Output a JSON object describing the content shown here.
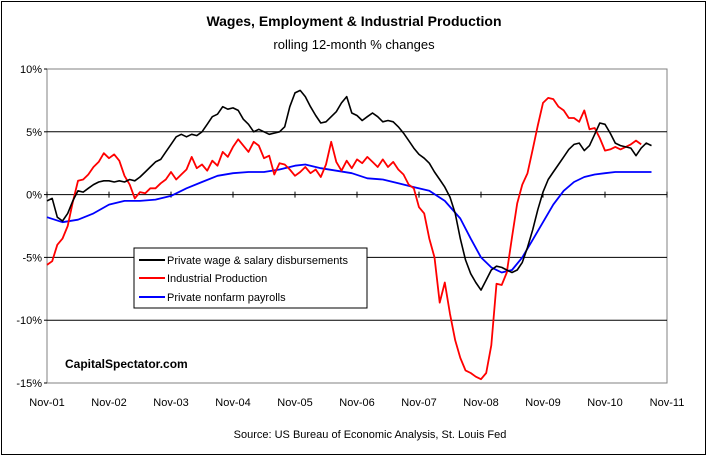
{
  "chart_data": {
    "type": "line",
    "title": "Wages, Employment & Industrial Production",
    "subtitle": "rolling 12-month % changes",
    "ylim": [
      -15,
      10
    ],
    "y_ticks": [
      "10%",
      "5%",
      "0%",
      "-5%",
      "-10%",
      "-15%"
    ],
    "y_tick_values": [
      10,
      5,
      0,
      -5,
      -10,
      -15
    ],
    "x_ticks": [
      "Nov-01",
      "Nov-02",
      "Nov-03",
      "Nov-04",
      "Nov-05",
      "Nov-06",
      "Nov-07",
      "Nov-08",
      "Nov-09",
      "Nov-10",
      "Nov-11"
    ],
    "grid": "horizontal",
    "legend_position": "left-middle",
    "series": [
      {
        "name": "Private wage & salary disbursements",
        "color": "#000000",
        "points": [
          [
            0,
            -0.5
          ],
          [
            1,
            -0.3
          ],
          [
            2,
            -1.8
          ],
          [
            3,
            -2.1
          ],
          [
            4,
            -1.5
          ],
          [
            5,
            -0.5
          ],
          [
            6,
            0.3
          ],
          [
            7,
            0.2
          ],
          [
            8,
            0.5
          ],
          [
            9,
            0.8
          ],
          [
            10,
            1.0
          ],
          [
            11,
            1.1
          ],
          [
            12,
            1.1
          ],
          [
            13,
            1.0
          ],
          [
            14,
            1.1
          ],
          [
            15,
            1.0
          ],
          [
            16,
            1.2
          ],
          [
            17,
            1.1
          ],
          [
            18,
            1.4
          ],
          [
            19,
            1.8
          ],
          [
            20,
            2.2
          ],
          [
            21,
            2.6
          ],
          [
            22,
            2.8
          ],
          [
            23,
            3.4
          ],
          [
            24,
            4.0
          ],
          [
            25,
            4.6
          ],
          [
            26,
            4.8
          ],
          [
            27,
            4.6
          ],
          [
            28,
            4.8
          ],
          [
            29,
            4.7
          ],
          [
            30,
            5.0
          ],
          [
            31,
            5.6
          ],
          [
            32,
            6.2
          ],
          [
            33,
            6.4
          ],
          [
            34,
            7.0
          ],
          [
            35,
            6.8
          ],
          [
            36,
            6.9
          ],
          [
            37,
            6.7
          ],
          [
            38,
            6.0
          ],
          [
            39,
            5.6
          ],
          [
            40,
            5.0
          ],
          [
            41,
            5.2
          ],
          [
            42,
            5.0
          ],
          [
            43,
            4.8
          ],
          [
            44,
            4.9
          ],
          [
            45,
            5.0
          ],
          [
            46,
            5.4
          ],
          [
            47,
            7.0
          ],
          [
            48,
            8.1
          ],
          [
            49,
            8.3
          ],
          [
            50,
            7.8
          ],
          [
            51,
            7.0
          ],
          [
            52,
            6.3
          ],
          [
            53,
            5.7
          ],
          [
            54,
            5.8
          ],
          [
            55,
            6.2
          ],
          [
            56,
            6.6
          ],
          [
            57,
            7.3
          ],
          [
            58,
            7.8
          ],
          [
            59,
            6.5
          ],
          [
            60,
            6.3
          ],
          [
            61,
            5.9
          ],
          [
            62,
            6.2
          ],
          [
            63,
            6.5
          ],
          [
            64,
            6.2
          ],
          [
            65,
            5.8
          ],
          [
            66,
            5.9
          ],
          [
            67,
            5.8
          ],
          [
            68,
            5.4
          ],
          [
            69,
            4.9
          ],
          [
            70,
            4.3
          ],
          [
            71,
            3.7
          ],
          [
            72,
            3.2
          ],
          [
            73,
            2.9
          ],
          [
            74,
            2.5
          ],
          [
            75,
            1.8
          ],
          [
            76,
            1.2
          ],
          [
            77,
            0.6
          ],
          [
            78,
            -0.2
          ],
          [
            79,
            -1.5
          ],
          [
            80,
            -3.5
          ],
          [
            81,
            -5.2
          ],
          [
            82,
            -6.3
          ],
          [
            83,
            -7.0
          ],
          [
            84,
            -7.6
          ],
          [
            85,
            -6.8
          ],
          [
            86,
            -6.0
          ],
          [
            87,
            -5.7
          ],
          [
            88,
            -5.8
          ],
          [
            89,
            -6.0
          ],
          [
            90,
            -6.2
          ],
          [
            91,
            -6.0
          ],
          [
            92,
            -5.4
          ],
          [
            93,
            -4.2
          ],
          [
            94,
            -2.8
          ],
          [
            95,
            -1.2
          ],
          [
            96,
            0.2
          ],
          [
            97,
            1.2
          ],
          [
            98,
            1.8
          ],
          [
            99,
            2.4
          ],
          [
            100,
            3.0
          ],
          [
            101,
            3.6
          ],
          [
            102,
            4.0
          ],
          [
            103,
            4.1
          ],
          [
            104,
            3.5
          ],
          [
            105,
            3.9
          ],
          [
            106,
            4.8
          ],
          [
            107,
            5.7
          ],
          [
            108,
            5.6
          ],
          [
            109,
            4.9
          ],
          [
            110,
            4.1
          ],
          [
            111,
            3.9
          ],
          [
            112,
            3.8
          ],
          [
            113,
            3.7
          ],
          [
            114,
            3.1
          ],
          [
            115,
            3.7
          ],
          [
            116,
            4.1
          ],
          [
            117,
            3.9
          ]
        ]
      },
      {
        "name": "Industrial Production",
        "color": "#ff0000",
        "points": [
          [
            0,
            -5.6
          ],
          [
            1,
            -5.3
          ],
          [
            2,
            -4.0
          ],
          [
            3,
            -3.5
          ],
          [
            4,
            -2.5
          ],
          [
            5,
            -0.6
          ],
          [
            6,
            1.1
          ],
          [
            7,
            1.2
          ],
          [
            8,
            1.6
          ],
          [
            9,
            2.2
          ],
          [
            10,
            2.6
          ],
          [
            11,
            3.3
          ],
          [
            12,
            2.9
          ],
          [
            13,
            3.2
          ],
          [
            14,
            2.7
          ],
          [
            15,
            1.5
          ],
          [
            16,
            0.8
          ],
          [
            17,
            -0.3
          ],
          [
            18,
            0.2
          ],
          [
            19,
            0.1
          ],
          [
            20,
            0.5
          ],
          [
            21,
            0.5
          ],
          [
            22,
            0.9
          ],
          [
            23,
            1.2
          ],
          [
            24,
            1.8
          ],
          [
            25,
            1.2
          ],
          [
            26,
            1.6
          ],
          [
            27,
            2.0
          ],
          [
            28,
            3.0
          ],
          [
            29,
            2.1
          ],
          [
            30,
            2.4
          ],
          [
            31,
            1.9
          ],
          [
            32,
            2.7
          ],
          [
            33,
            2.3
          ],
          [
            34,
            3.4
          ],
          [
            35,
            3.0
          ],
          [
            36,
            3.8
          ],
          [
            37,
            4.4
          ],
          [
            38,
            3.9
          ],
          [
            39,
            3.4
          ],
          [
            40,
            4.2
          ],
          [
            41,
            3.9
          ],
          [
            42,
            2.9
          ],
          [
            43,
            3.1
          ],
          [
            44,
            1.6
          ],
          [
            45,
            2.5
          ],
          [
            46,
            2.4
          ],
          [
            47,
            2.0
          ],
          [
            48,
            1.5
          ],
          [
            49,
            1.8
          ],
          [
            50,
            2.2
          ],
          [
            51,
            1.7
          ],
          [
            52,
            2.0
          ],
          [
            53,
            1.4
          ],
          [
            54,
            2.4
          ],
          [
            55,
            4.2
          ],
          [
            56,
            2.6
          ],
          [
            57,
            1.9
          ],
          [
            58,
            2.7
          ],
          [
            59,
            2.1
          ],
          [
            60,
            2.8
          ],
          [
            61,
            2.5
          ],
          [
            62,
            3.0
          ],
          [
            63,
            2.6
          ],
          [
            64,
            2.2
          ],
          [
            65,
            2.8
          ],
          [
            66,
            2.2
          ],
          [
            67,
            2.6
          ],
          [
            68,
            2.0
          ],
          [
            69,
            1.6
          ],
          [
            70,
            0.8
          ],
          [
            71,
            0.5
          ],
          [
            72,
            -1.0
          ],
          [
            73,
            -1.5
          ],
          [
            74,
            -3.5
          ],
          [
            75,
            -5.0
          ],
          [
            76,
            -8.6
          ],
          [
            77,
            -7.0
          ],
          [
            78,
            -9.5
          ],
          [
            79,
            -11.6
          ],
          [
            80,
            -13.0
          ],
          [
            81,
            -14.0
          ],
          [
            82,
            -14.2
          ],
          [
            83,
            -14.5
          ],
          [
            84,
            -14.7
          ],
          [
            85,
            -14.2
          ],
          [
            86,
            -12.0
          ],
          [
            87,
            -7.1
          ],
          [
            88,
            -7.2
          ],
          [
            89,
            -6.2
          ],
          [
            90,
            -3.4
          ],
          [
            91,
            -0.7
          ],
          [
            92,
            0.8
          ],
          [
            93,
            1.7
          ],
          [
            94,
            3.6
          ],
          [
            95,
            5.5
          ],
          [
            96,
            7.3
          ],
          [
            97,
            7.7
          ],
          [
            98,
            7.6
          ],
          [
            99,
            7.0
          ],
          [
            100,
            6.7
          ],
          [
            101,
            6.1
          ],
          [
            102,
            6.1
          ],
          [
            103,
            5.8
          ],
          [
            104,
            6.7
          ],
          [
            105,
            5.2
          ],
          [
            106,
            5.3
          ],
          [
            107,
            4.5
          ],
          [
            108,
            3.5
          ],
          [
            109,
            3.6
          ],
          [
            110,
            3.8
          ],
          [
            111,
            3.6
          ],
          [
            112,
            3.8
          ],
          [
            113,
            4.0
          ],
          [
            114,
            4.3
          ],
          [
            115,
            4.0
          ]
        ]
      },
      {
        "name": "Private nonfarm payrolls",
        "color": "#0000ff",
        "points": [
          [
            0,
            -1.8
          ],
          [
            3,
            -2.2
          ],
          [
            6,
            -2.0
          ],
          [
            9,
            -1.5
          ],
          [
            12,
            -0.8
          ],
          [
            15,
            -0.5
          ],
          [
            18,
            -0.5
          ],
          [
            21,
            -0.4
          ],
          [
            24,
            -0.1
          ],
          [
            27,
            0.5
          ],
          [
            30,
            1.0
          ],
          [
            33,
            1.5
          ],
          [
            36,
            1.7
          ],
          [
            39,
            1.8
          ],
          [
            42,
            1.8
          ],
          [
            45,
            2.0
          ],
          [
            48,
            2.3
          ],
          [
            50,
            2.4
          ],
          [
            53,
            2.1
          ],
          [
            56,
            1.9
          ],
          [
            59,
            1.7
          ],
          [
            62,
            1.3
          ],
          [
            65,
            1.2
          ],
          [
            68,
            0.9
          ],
          [
            71,
            0.6
          ],
          [
            74,
            0.3
          ],
          [
            77,
            -0.5
          ],
          [
            80,
            -1.9
          ],
          [
            82,
            -3.5
          ],
          [
            84,
            -5.0
          ],
          [
            86,
            -5.8
          ],
          [
            88,
            -6.2
          ],
          [
            90,
            -6.0
          ],
          [
            92,
            -5.0
          ],
          [
            94,
            -3.6
          ],
          [
            96,
            -2.2
          ],
          [
            98,
            -0.8
          ],
          [
            100,
            0.3
          ],
          [
            102,
            1.0
          ],
          [
            104,
            1.4
          ],
          [
            106,
            1.6
          ],
          [
            108,
            1.7
          ],
          [
            110,
            1.8
          ],
          [
            112,
            1.8
          ],
          [
            114,
            1.8
          ],
          [
            117,
            1.8
          ]
        ]
      }
    ],
    "watermark": "CapitalSpectator.com",
    "source": "Source: US Bureau of Economic Analysis, St. Louis Fed"
  }
}
